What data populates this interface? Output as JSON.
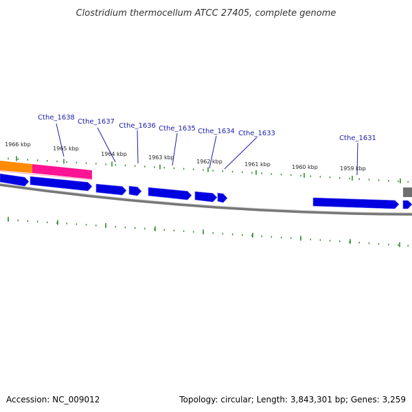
{
  "title": "Clostridium thermocellum ATCC 27405, complete genome",
  "footer": {
    "accession": "Accession: NC_009012",
    "summary": "Topology: circular; Length: 3,843,301 bp; Genes: 3,259"
  },
  "colors": {
    "gene_label": "#1a1aaa",
    "cds_forward": "#0000e0",
    "tick": "#2e8b2e",
    "backbone": "#777777",
    "feature_orange": "#ff8c00",
    "feature_pink": "#ff1493",
    "feature_gray": "#6f6f6f"
  },
  "ticks": [
    {
      "kbp": 1966,
      "label": "1966 kbp"
    },
    {
      "kbp": 1965,
      "label": "1965 kbp"
    },
    {
      "kbp": 1964,
      "label": "1964 kbp"
    },
    {
      "kbp": 1963,
      "label": "1963 kbp"
    },
    {
      "kbp": 1962,
      "label": "1962 kbp"
    },
    {
      "kbp": 1961,
      "label": "1961 kbp"
    },
    {
      "kbp": 1960,
      "label": "1960 kbp"
    },
    {
      "kbp": 1959,
      "label": "1959 kbp"
    }
  ],
  "gene_labels": [
    {
      "name": "Cthe_1638"
    },
    {
      "name": "Cthe_1637"
    },
    {
      "name": "Cthe_1636"
    },
    {
      "name": "Cthe_1635"
    },
    {
      "name": "Cthe_1634"
    },
    {
      "name": "Cthe_1633"
    },
    {
      "name": "Cthe_1631"
    }
  ],
  "features": [
    {
      "kind": "orange-feature",
      "color_key": "feature_orange"
    },
    {
      "kind": "pink-feature",
      "color_key": "feature_pink"
    },
    {
      "kind": "gray-feature",
      "color_key": "feature_gray"
    }
  ],
  "cds": [
    {
      "id": "cds-1"
    },
    {
      "id": "cds-2"
    },
    {
      "id": "cds-3"
    },
    {
      "id": "cds-4"
    },
    {
      "id": "cds-5"
    },
    {
      "id": "cds-6"
    },
    {
      "id": "cds-7"
    },
    {
      "id": "cds-8"
    },
    {
      "id": "cds-9"
    },
    {
      "id": "cds-10"
    }
  ]
}
